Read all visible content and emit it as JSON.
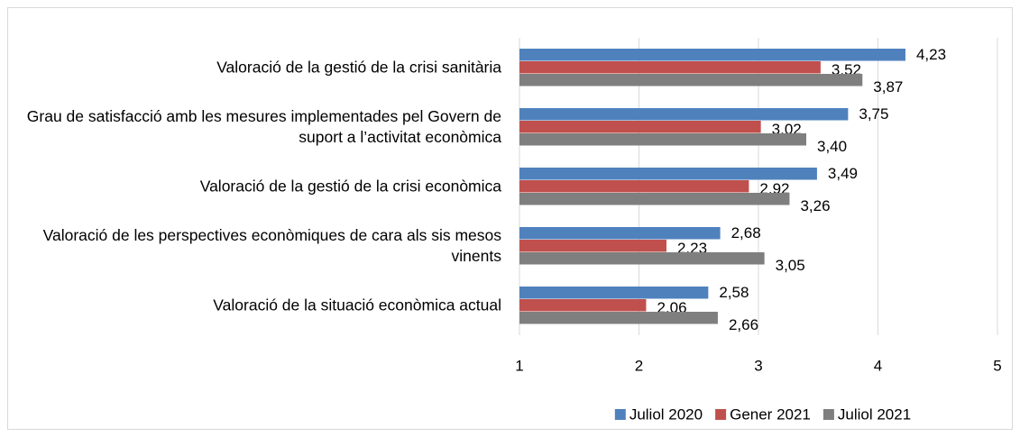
{
  "chart_data": {
    "type": "bar",
    "orientation": "horizontal",
    "categories": [
      "Valoració de la gestió de la crisi sanitària",
      "Grau de satisfacció amb les mesures implementades pel Govern de suport a l’activitat econòmica",
      "Valoració de la gestió de la crisi econòmica",
      "Valoració de les perspectives econòmiques de cara als sis mesos vinents",
      "Valoració de la situació econòmica actual"
    ],
    "series": [
      {
        "name": "Juliol 2020",
        "color": "#4f81bd",
        "values": [
          4.23,
          3.75,
          3.49,
          2.68,
          2.58
        ],
        "value_labels": [
          "4,23",
          "3,75",
          "3,49",
          "2,68",
          "2,58"
        ]
      },
      {
        "name": "Gener 2021",
        "color": "#c0504d",
        "values": [
          3.52,
          3.02,
          2.92,
          2.23,
          2.06
        ],
        "value_labels": [
          "3,52",
          "3,02",
          "2,92",
          "2,23",
          "2,06"
        ]
      },
      {
        "name": "Juliol 2021",
        "color": "#7f7f7f",
        "values": [
          3.87,
          3.4,
          3.26,
          3.05,
          2.66
        ],
        "value_labels": [
          "3,87",
          "3,40",
          "3,26",
          "3,05",
          "2,66"
        ]
      }
    ],
    "xlim": [
      1,
      5
    ],
    "xticks": [
      1,
      2,
      3,
      4,
      5
    ],
    "grid": true,
    "legend": "bottom"
  }
}
